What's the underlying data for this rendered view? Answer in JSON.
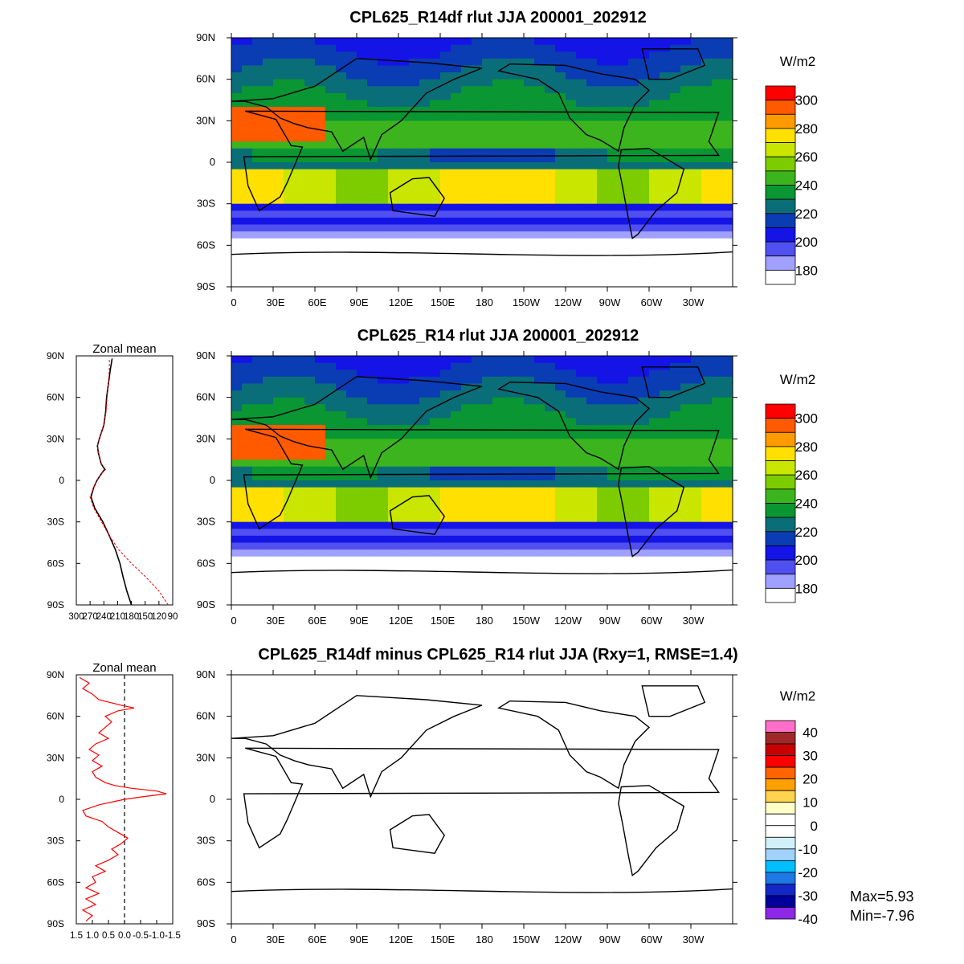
{
  "chart_data": [
    {
      "type": "heatmap",
      "title": "CPL625_R14df rlut JJA 200001_202912",
      "units": "W/m2",
      "lon_labels": [
        "0",
        "30E",
        "60E",
        "90E",
        "120E",
        "150E",
        "180",
        "150W",
        "120W",
        "90W",
        "60W",
        "30W"
      ],
      "lat_labels": [
        "90N",
        "60N",
        "30N",
        "0",
        "30S",
        "60S",
        "90S"
      ],
      "colorbar_labels": [
        "300",
        "280",
        "260",
        "240",
        "220",
        "200",
        "180"
      ],
      "colorbar_colors": [
        "#ff0000",
        "#ff5a00",
        "#ff9a00",
        "#ffe000",
        "#c8e600",
        "#7dcc00",
        "#3cb41e",
        "#0a9632",
        "#0a6e78",
        "#0a3cb4",
        "#1414e6",
        "#5050f0",
        "#a0a0ff",
        "#ffffff"
      ],
      "zonal_mean_lat": [
        -90,
        -80,
        -70,
        -60,
        -50,
        -40,
        -30,
        -20,
        -12,
        -5,
        0,
        5,
        8,
        12,
        20,
        25,
        30,
        40,
        50,
        60,
        70,
        80,
        88
      ],
      "zonal_mean_values": [
        180,
        190,
        198,
        205,
        215,
        228,
        242,
        260,
        268,
        262,
        255,
        245,
        238,
        246,
        252,
        254,
        250,
        240,
        236,
        234,
        230,
        226,
        222
      ]
    },
    {
      "type": "heatmap",
      "title": "CPL625_R14 rlut JJA 200001_202912",
      "units": "W/m2",
      "lon_labels": [
        "0",
        "30E",
        "60E",
        "90E",
        "120E",
        "150E",
        "180",
        "150W",
        "120W",
        "90W",
        "60W",
        "30W"
      ],
      "lat_labels": [
        "90N",
        "60N",
        "30N",
        "0",
        "30S",
        "60S",
        "90S"
      ],
      "colorbar_labels": [
        "300",
        "280",
        "260",
        "240",
        "220",
        "200",
        "180"
      ],
      "colorbar_colors": [
        "#ff0000",
        "#ff5a00",
        "#ff9a00",
        "#ffe000",
        "#c8e600",
        "#7dcc00",
        "#3cb41e",
        "#0a9632",
        "#0a6e78",
        "#0a3cb4",
        "#1414e6",
        "#5050f0",
        "#a0a0ff",
        "#ffffff"
      ],
      "zonal_mean_title": "Zonal mean",
      "zonal_mean_xticks": [
        "300",
        "270",
        "240",
        "210",
        "180",
        "150",
        "120",
        "90"
      ],
      "zonal_mean_xlim": [
        300,
        90
      ],
      "zonal_mean_lat": [
        -90,
        -80,
        -70,
        -60,
        -50,
        -40,
        -30,
        -20,
        -12,
        -5,
        0,
        5,
        8,
        12,
        20,
        25,
        30,
        40,
        50,
        60,
        70,
        80,
        88
      ],
      "zonal_mean_values": [
        100,
        120,
        148,
        180,
        208,
        228,
        245,
        262,
        270,
        262,
        255,
        245,
        236,
        246,
        252,
        254,
        250,
        240,
        235,
        233,
        230,
        228,
        228
      ]
    },
    {
      "type": "heatmap",
      "title": "CPL625_R14df minus CPL625_R14 rlut JJA (Rxy=1, RMSE=1.4)",
      "units": "W/m2",
      "lon_labels": [
        "0",
        "30E",
        "60E",
        "90E",
        "120E",
        "150E",
        "180",
        "150W",
        "120W",
        "90W",
        "60W",
        "30W"
      ],
      "lat_labels": [
        "90N",
        "60N",
        "30N",
        "0",
        "30S",
        "60S",
        "90S"
      ],
      "colorbar_labels": [
        "40",
        "30",
        "20",
        "10",
        "0",
        "-10",
        "-20",
        "-30",
        "-40"
      ],
      "colorbar_colors": [
        "#ff6ec8",
        "#a02828",
        "#c80000",
        "#ff0000",
        "#ff6400",
        "#ffa000",
        "#ffd250",
        "#ffffc8",
        "#ffffff",
        "#ffffff",
        "#d2f0fa",
        "#a0d2fa",
        "#00beff",
        "#1e78e6",
        "#1428c8",
        "#00009b",
        "#8c28e6"
      ],
      "zonal_mean_title": "Zonal mean",
      "zonal_mean_xticks": [
        "1.5",
        "1.0",
        "0.5",
        "0.0",
        "-0.5",
        "-1.0",
        "-1.5"
      ],
      "zonal_mean_xlim": [
        1.5,
        -1.5
      ],
      "zonal_mean_lat": [
        -88,
        -84,
        -80,
        -76,
        -72,
        -68,
        -64,
        -60,
        -56,
        -52,
        -48,
        -44,
        -40,
        -36,
        -32,
        -28,
        -24,
        -20,
        -16,
        -12,
        -8,
        -4,
        0,
        2,
        4,
        6,
        8,
        10,
        12,
        16,
        20,
        24,
        28,
        32,
        36,
        40,
        44,
        48,
        52,
        56,
        60,
        64,
        66,
        68,
        72,
        76,
        80,
        84,
        88
      ],
      "zonal_mean_values": [
        1.2,
        1.0,
        1.3,
        0.9,
        1.2,
        0.8,
        1.2,
        0.9,
        1.0,
        0.6,
        0.9,
        0.5,
        0.2,
        0.4,
        0.1,
        -0.1,
        0.2,
        0.5,
        0.7,
        1.2,
        1.3,
        0.8,
        0.0,
        -0.6,
        -1.3,
        -1.0,
        -0.2,
        0.3,
        0.6,
        0.9,
        1.0,
        0.7,
        1.0,
        0.8,
        1.1,
        0.9,
        0.5,
        0.8,
        0.6,
        0.4,
        0.6,
        0.2,
        -0.3,
        0.1,
        0.8,
        1.0,
        1.3,
        1.1,
        1.4
      ],
      "stats_max": "Max=5.93",
      "stats_min": "Min=-7.96"
    }
  ]
}
